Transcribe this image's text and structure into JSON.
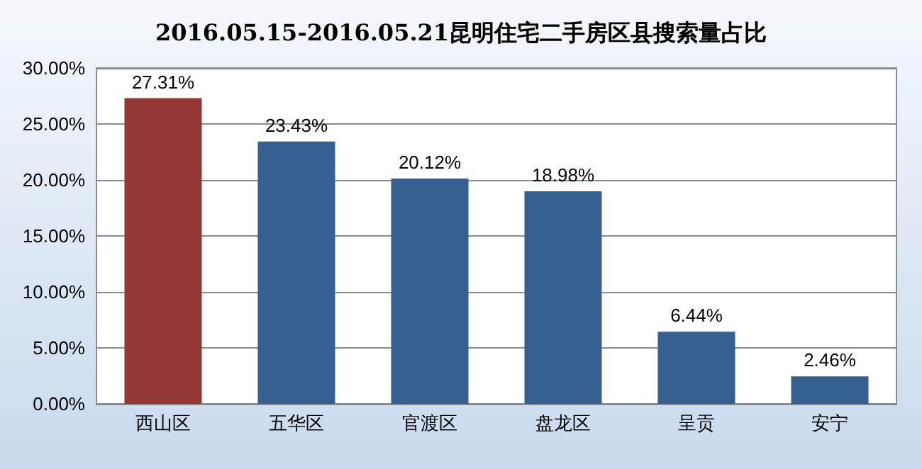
{
  "chart_data": {
    "type": "bar",
    "title": "2016.05.15-2016.05.21昆明住宅二手房区县搜索量占比",
    "categories": [
      "西山区",
      "五华区",
      "官渡区",
      "盘龙区",
      "呈贡",
      "安宁"
    ],
    "values": [
      27.31,
      23.43,
      20.12,
      18.98,
      6.44,
      2.46
    ],
    "colors": [
      "#953735",
      "#376092",
      "#376092",
      "#376092",
      "#376092",
      "#376092"
    ],
    "value_labels": [
      "27.31%",
      "23.43%",
      "20.12%",
      "18.98%",
      "6.44%",
      "2.46%"
    ],
    "ylim": [
      0,
      30
    ],
    "yticks": [
      {
        "value": 0,
        "label": "0.00%"
      },
      {
        "value": 5,
        "label": "5.00%"
      },
      {
        "value": 10,
        "label": "10.00%"
      },
      {
        "value": 15,
        "label": "15.00%"
      },
      {
        "value": 20,
        "label": "20.00%"
      },
      {
        "value": 25,
        "label": "25.00%"
      },
      {
        "value": 30,
        "label": "30.00%"
      }
    ],
    "grid": "y"
  }
}
